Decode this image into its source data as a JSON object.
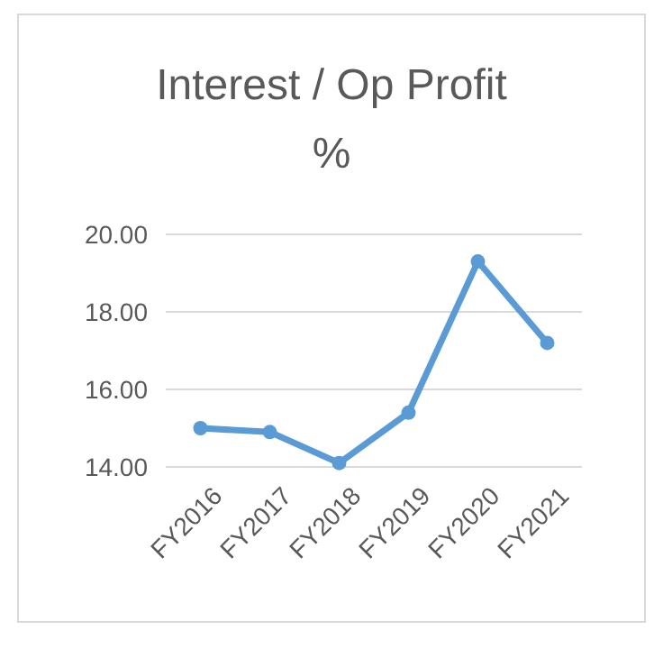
{
  "chart_data": {
    "type": "line",
    "title": "Interest / Op Profit %",
    "categories": [
      "FY2016",
      "FY2017",
      "FY2018",
      "FY2019",
      "FY2020",
      "FY2021"
    ],
    "series": [
      {
        "color": "#5b9bd5",
        "values": [
          15.0,
          14.9,
          14.1,
          15.4,
          19.3,
          17.2
        ]
      }
    ],
    "ylim": [
      14,
      20
    ],
    "yticks": [
      {
        "value": 14,
        "label": "14.00"
      },
      {
        "value": 16,
        "label": "16.00"
      },
      {
        "value": 18,
        "label": "18.00"
      },
      {
        "value": 20,
        "label": "20.00"
      }
    ],
    "grid": "y",
    "marker": "circle",
    "line_style": "solid"
  }
}
